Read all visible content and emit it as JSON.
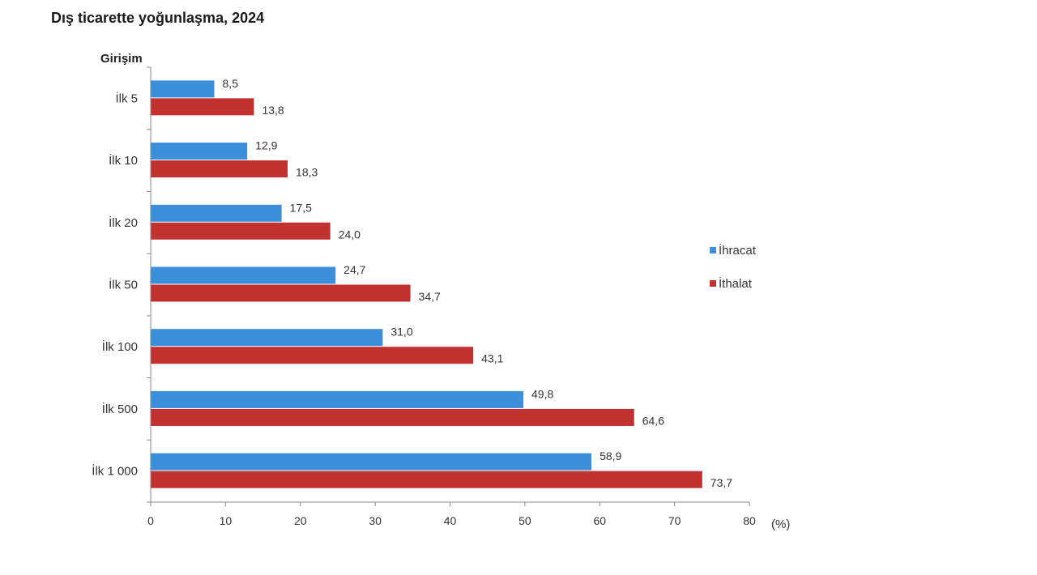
{
  "chart_data": {
    "type": "bar",
    "orientation": "horizontal",
    "title": "Dış ticarette yoğunlaşma, 2024",
    "ylabel": "Girişim",
    "xlabel": "(%)",
    "categories": [
      "İlk 5",
      "İlk 10",
      "İlk 20",
      "İlk 50",
      "İlk 100",
      "İlk 500",
      "İlk 1 000"
    ],
    "series": [
      {
        "name": "İhracat",
        "color": "#3d8fd9",
        "values": [
          8.5,
          12.9,
          17.5,
          24.7,
          31.0,
          49.8,
          58.9
        ],
        "labels": [
          "8,5",
          "12,9",
          "17,5",
          "24,7",
          "31,0",
          "49,8",
          "58,9"
        ]
      },
      {
        "name": "İthalat",
        "color": "#c0312f",
        "values": [
          13.8,
          18.3,
          24.0,
          34.7,
          43.1,
          64.6,
          73.7
        ],
        "labels": [
          "13,8",
          "18,3",
          "24,0",
          "34,7",
          "43,1",
          "64,6",
          "73,7"
        ]
      }
    ],
    "xlim": [
      0,
      80
    ],
    "xticks": [
      0,
      10,
      20,
      30,
      40,
      50,
      60,
      70,
      80
    ],
    "grid": false,
    "legend_position": "right"
  }
}
